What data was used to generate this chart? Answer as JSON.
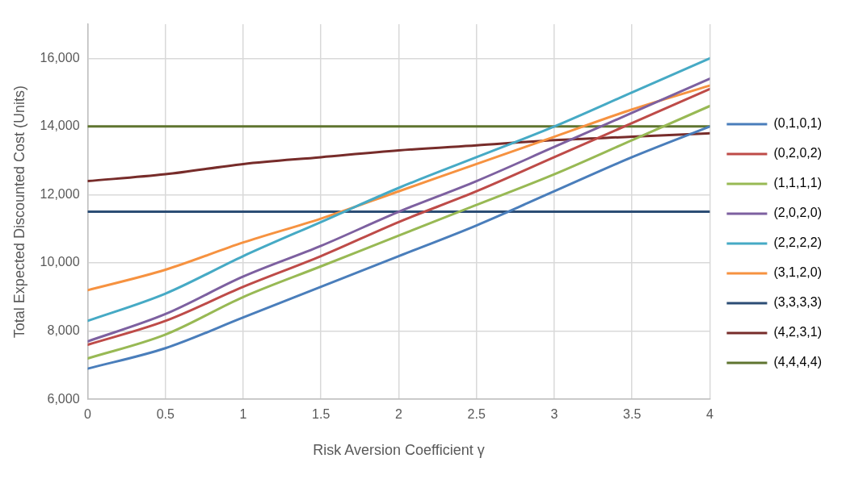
{
  "chart_data": {
    "type": "line",
    "xlabel": "Risk Aversion Coefficient γ",
    "ylabel": "Total Expected Discounted Cost (Units)",
    "x": [
      0,
      0.5,
      1,
      1.5,
      2,
      2.5,
      3,
      3.5,
      4
    ],
    "xlim": [
      0,
      4
    ],
    "xticks": [
      0,
      0.5,
      1,
      1.5,
      2,
      2.5,
      3,
      3.5,
      4
    ],
    "ylim": [
      6000,
      17000
    ],
    "yticks": [
      {
        "value": 6000,
        "label": "6,000"
      },
      {
        "value": 8000,
        "label": "8,000"
      },
      {
        "value": 10000,
        "label": "10,000"
      },
      {
        "value": 12000,
        "label": "12,000"
      },
      {
        "value": 14000,
        "label": "14,000"
      },
      {
        "value": 16000,
        "label": "16,000"
      }
    ],
    "grid": true,
    "legend": "right",
    "marker": "none",
    "line_style": "solid",
    "series": [
      {
        "name": "(0,1,0,1)",
        "color": "#4a7ebb",
        "values": [
          6900,
          7500,
          8400,
          9300,
          10200,
          11100,
          12100,
          13100,
          14000
        ]
      },
      {
        "name": "(0,2,0,2)",
        "color": "#be4b48",
        "values": [
          7600,
          8300,
          9300,
          10200,
          11200,
          12100,
          13100,
          14100,
          15100
        ]
      },
      {
        "name": "(1,1,1,1)",
        "color": "#98b954",
        "values": [
          7200,
          7900,
          9000,
          9900,
          10800,
          11700,
          12600,
          13600,
          14600
        ]
      },
      {
        "name": "(2,0,2,0)",
        "color": "#7d60a0",
        "values": [
          7700,
          8500,
          9600,
          10500,
          11500,
          12400,
          13400,
          14400,
          15400
        ]
      },
      {
        "name": "(2,2,2,2)",
        "color": "#46aac5",
        "values": [
          8300,
          9100,
          10200,
          11200,
          12200,
          13100,
          14000,
          15000,
          16000
        ]
      },
      {
        "name": "(3,1,2,0)",
        "color": "#f69240",
        "values": [
          9200,
          9800,
          10600,
          11300,
          12100,
          12900,
          13700,
          14500,
          15200
        ]
      },
      {
        "name": "(3,3,3,3)",
        "color": "#2c4d75",
        "values": [
          11500,
          11500,
          11500,
          11500,
          11500,
          11500,
          11500,
          11500,
          11500
        ]
      },
      {
        "name": "(4,2,3,1)",
        "color": "#772c2a",
        "values": [
          12400,
          12600,
          12900,
          13100,
          13300,
          13450,
          13600,
          13700,
          13800
        ]
      },
      {
        "name": "(4,4,4,4)",
        "color": "#5f7530",
        "values": [
          14000,
          14000,
          14000,
          14000,
          14000,
          14000,
          14000,
          14000,
          14000
        ]
      }
    ]
  }
}
